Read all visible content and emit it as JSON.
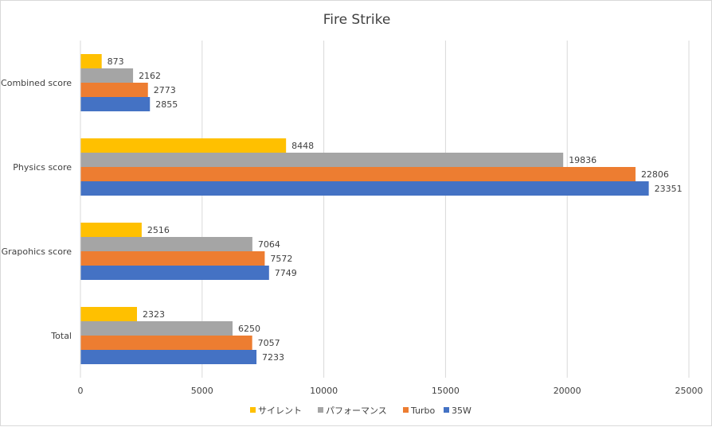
{
  "chart_data": {
    "type": "bar",
    "orientation": "horizontal",
    "title": "Fire Strike",
    "categories": [
      "Combined score",
      "Physics score",
      "Grapohics score",
      "Total"
    ],
    "series": [
      {
        "name": "サイレント",
        "color": "#FFC000",
        "values": [
          873,
          8448,
          2516,
          2323
        ]
      },
      {
        "name": "パフォーマンス",
        "color": "#A5A5A5",
        "values": [
          2162,
          19836,
          7064,
          6250
        ]
      },
      {
        "name": "Turbo",
        "color": "#ED7D31",
        "values": [
          2773,
          22806,
          7572,
          7057
        ]
      },
      {
        "name": "35W",
        "color": "#4472C4",
        "values": [
          2855,
          23351,
          7749,
          7233
        ]
      }
    ],
    "xlim": [
      0,
      25000
    ],
    "xticks": [
      0,
      5000,
      10000,
      15000,
      20000,
      25000
    ],
    "grid": true,
    "data_labels": true,
    "legend": "bottom"
  }
}
